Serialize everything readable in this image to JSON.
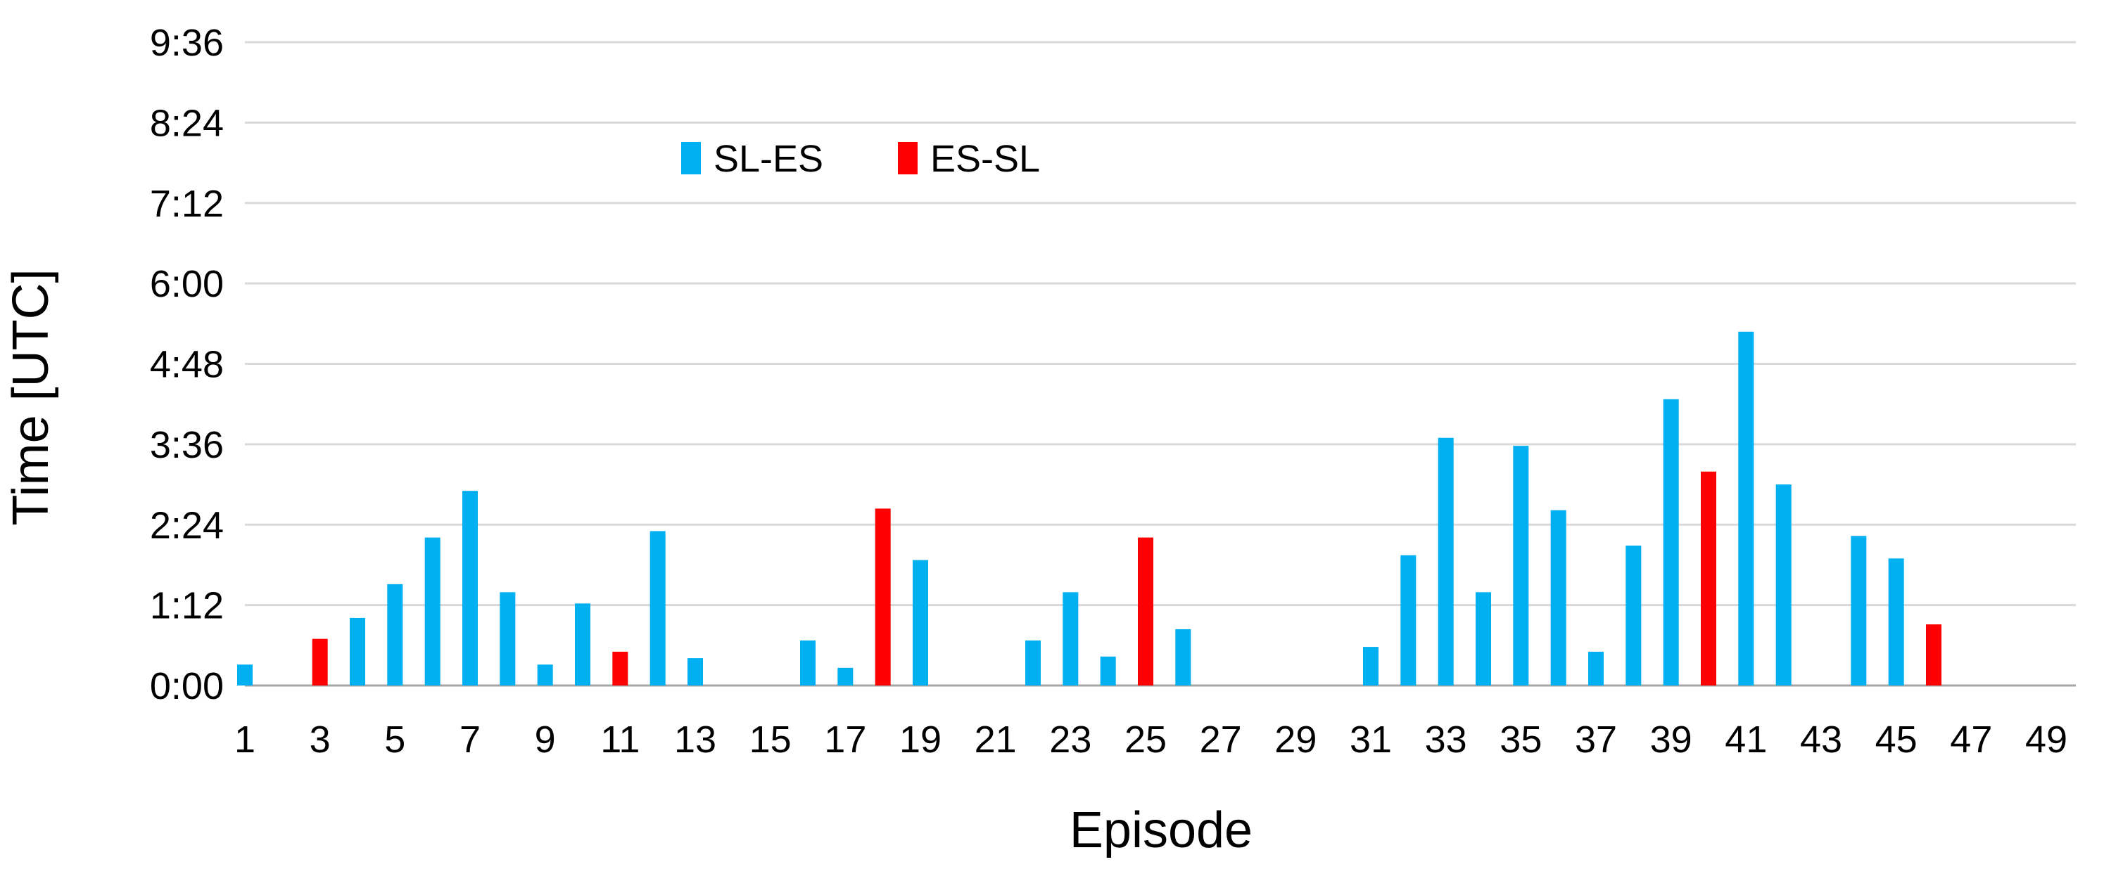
{
  "chart_data": {
    "type": "bar",
    "title": "",
    "xlabel": "Episode",
    "ylabel": "Time [UTC]",
    "ylim": [
      0,
      576
    ],
    "y_unit": "minutes since 0:00 UTC",
    "y_ticks": [
      "0:00",
      "1:12",
      "2:24",
      "3:36",
      "4:48",
      "6:00",
      "7:12",
      "8:24",
      "9:36"
    ],
    "x_ticks": [
      "1",
      "3",
      "5",
      "7",
      "9",
      "11",
      "13",
      "15",
      "17",
      "19",
      "21",
      "23",
      "25",
      "27",
      "29",
      "31",
      "33",
      "35",
      "37",
      "39",
      "41",
      "43",
      "45",
      "47",
      "49"
    ],
    "x_range": [
      1,
      49
    ],
    "grid": "horizontal",
    "legend_position": "top-center",
    "series": [
      {
        "name": "SL-ES",
        "color": "#00B0F0",
        "points": [
          {
            "x": 1,
            "y": 0.013
          },
          {
            "x": 4,
            "y": 0.042
          },
          {
            "x": 5,
            "y": 0.063
          },
          {
            "x": 6,
            "y": 0.092
          },
          {
            "x": 7,
            "y": 0.121
          },
          {
            "x": 8,
            "y": 0.058
          },
          {
            "x": 9,
            "y": 0.013
          },
          {
            "x": 10,
            "y": 0.051
          },
          {
            "x": 11,
            "y": 0.0
          },
          {
            "x": 12,
            "y": 0.096
          },
          {
            "x": 13,
            "y": 0.017
          },
          {
            "x": 16,
            "y": 0.028
          },
          {
            "x": 17,
            "y": 0.011
          },
          {
            "x": 19,
            "y": 0.078
          },
          {
            "x": 22,
            "y": 0.028
          },
          {
            "x": 23,
            "y": 0.058
          },
          {
            "x": 24,
            "y": 0.018
          },
          {
            "x": 26,
            "y": 0.035
          },
          {
            "x": 31,
            "y": 0.024
          },
          {
            "x": 32,
            "y": 0.081
          },
          {
            "x": 33,
            "y": 0.154
          },
          {
            "x": 34,
            "y": 0.058
          },
          {
            "x": 35,
            "y": 0.149
          },
          {
            "x": 36,
            "y": 0.109
          },
          {
            "x": 37,
            "y": 0.021
          },
          {
            "x": 38,
            "y": 0.087
          },
          {
            "x": 39,
            "y": 0.178
          },
          {
            "x": 41,
            "y": 0.22
          },
          {
            "x": 42,
            "y": 0.125
          },
          {
            "x": 44,
            "y": 0.093
          },
          {
            "x": 45,
            "y": 0.079
          }
        ]
      },
      {
        "name": "ES-SL",
        "color": "#FF0000",
        "points": [
          {
            "x": 3,
            "y": 0.029
          },
          {
            "x": 11,
            "y": 0.021
          },
          {
            "x": 18,
            "y": 0.11
          },
          {
            "x": 25,
            "y": 0.092
          },
          {
            "x": 40,
            "y": 0.133
          },
          {
            "x": 46,
            "y": 0.038
          }
        ]
      }
    ]
  }
}
